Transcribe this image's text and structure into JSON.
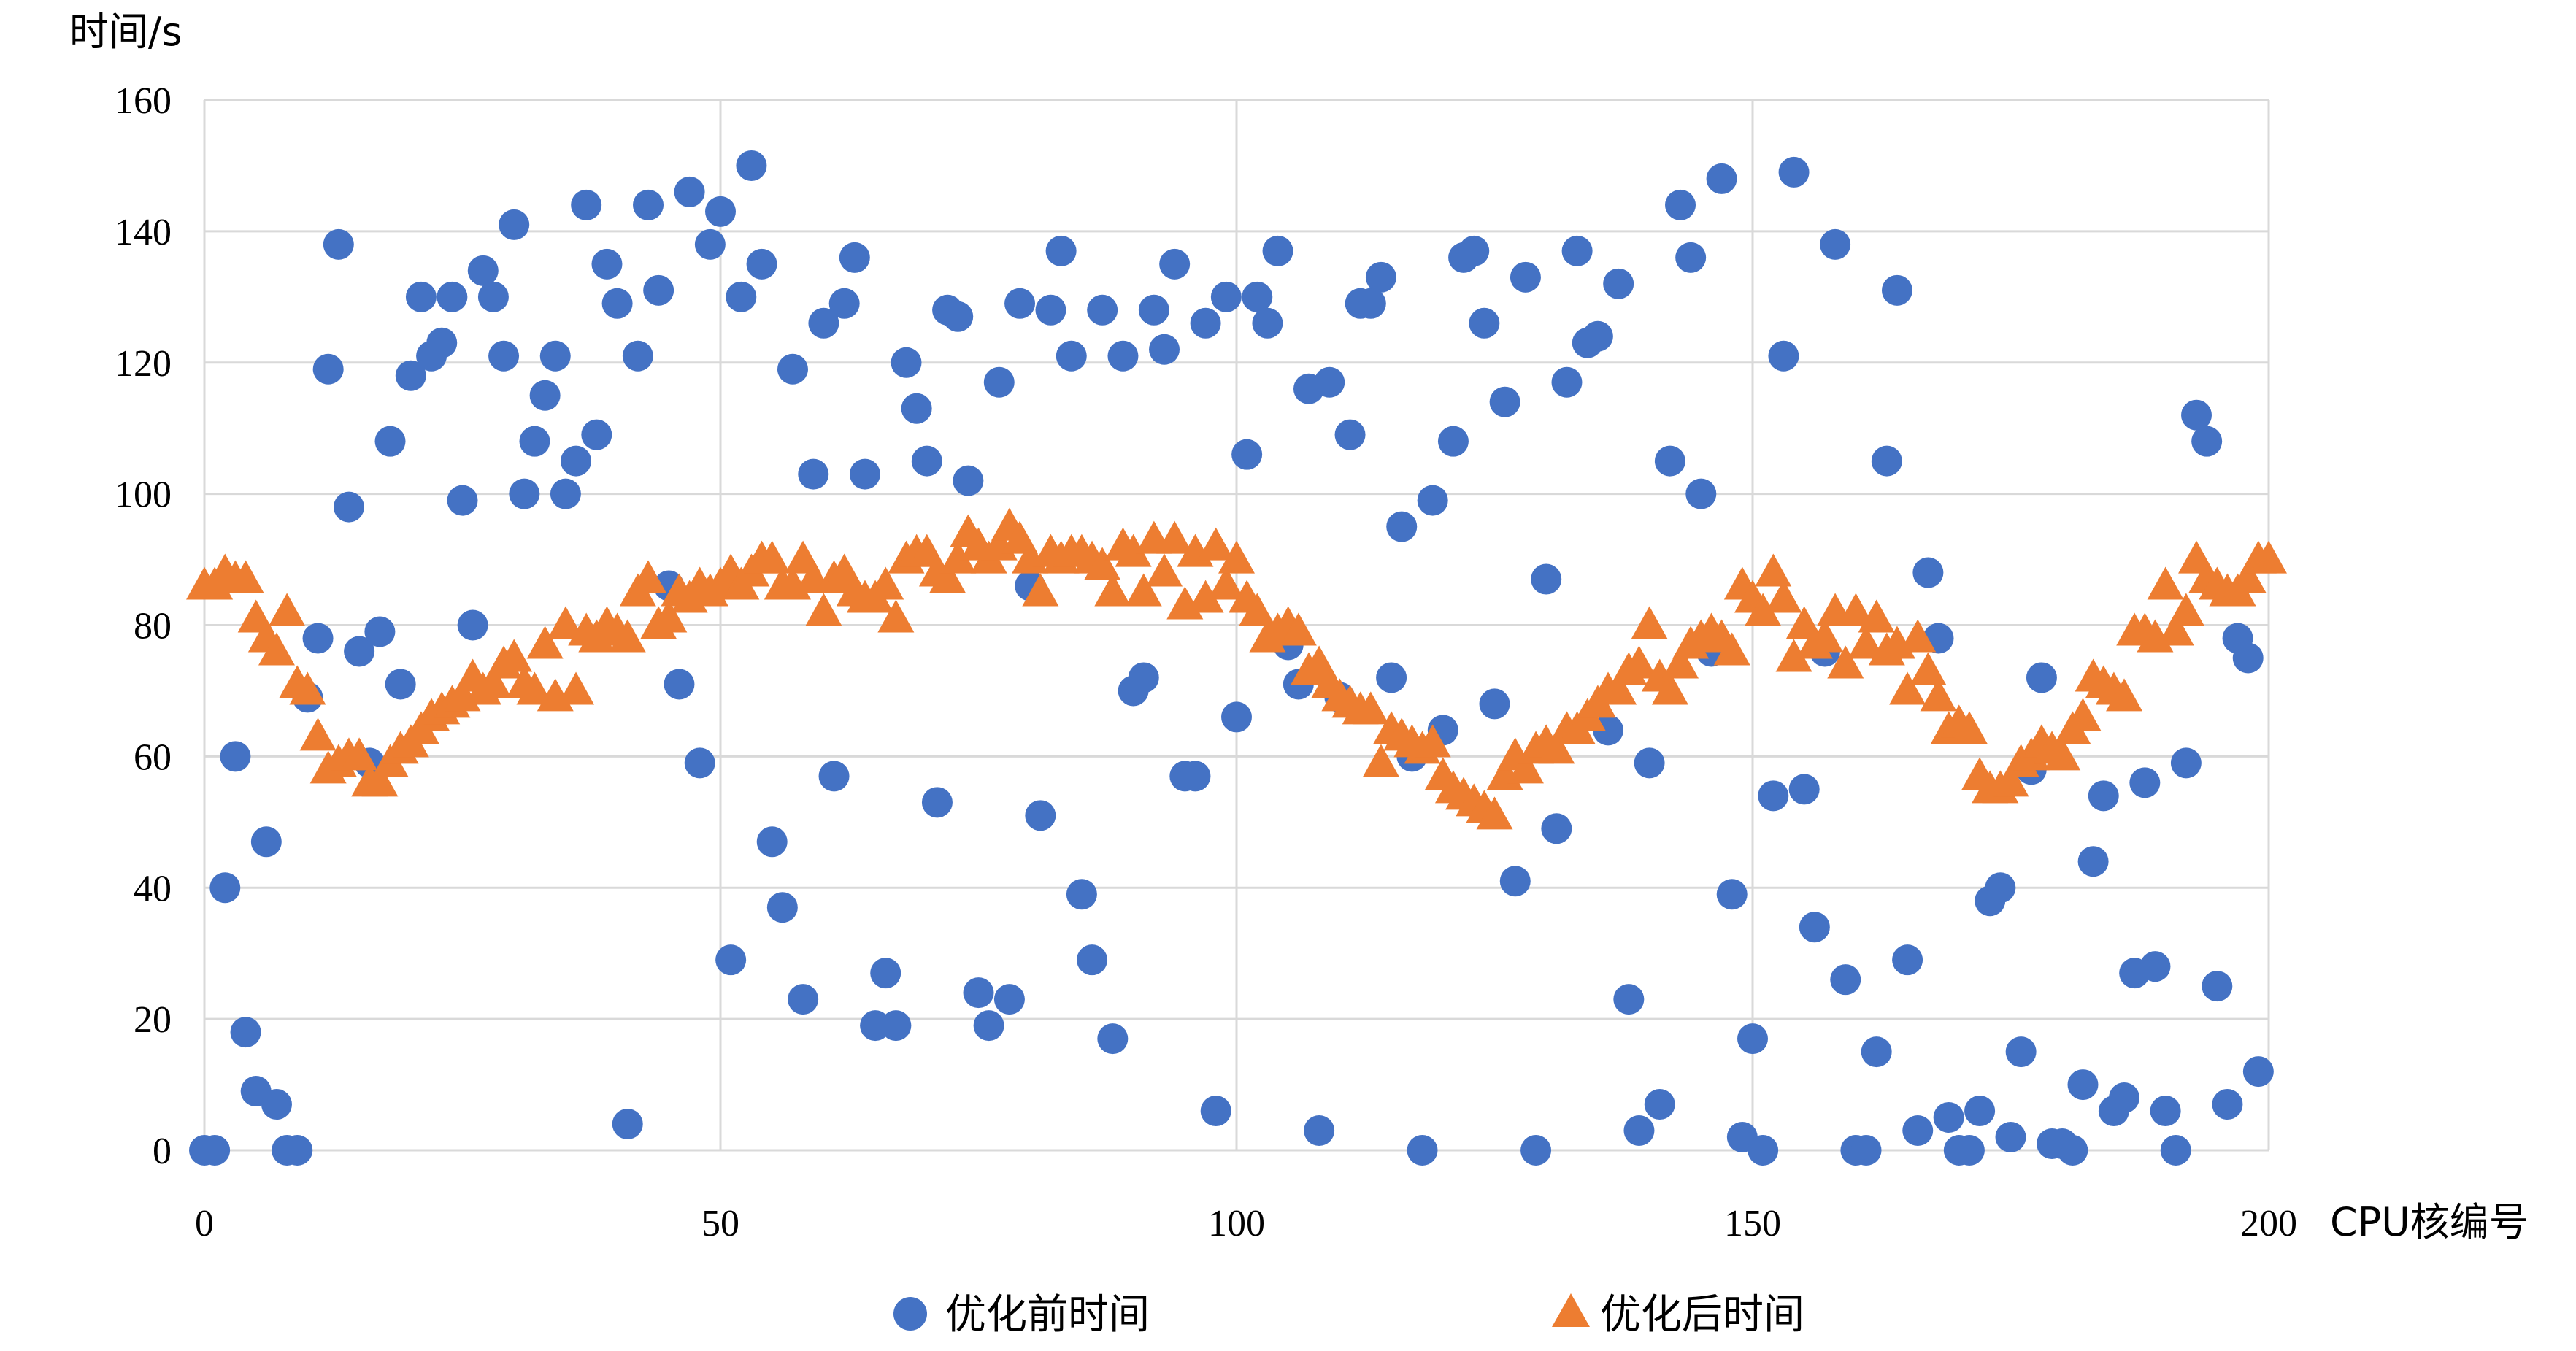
{
  "chart_data": {
    "type": "scatter",
    "title": "",
    "ylabel": "时间/s",
    "xlabel": "CPU核编号",
    "xlim": [
      0,
      200
    ],
    "ylim": [
      0,
      160
    ],
    "x_ticks": [
      0,
      50,
      100,
      150,
      200
    ],
    "y_ticks": [
      0,
      20,
      40,
      60,
      80,
      100,
      120,
      140,
      160
    ],
    "grid": true,
    "legend": "bottom",
    "series": [
      {
        "name": "优化前时间",
        "marker": "circle",
        "color": "#4472c4",
        "values": [
          0,
          0,
          40,
          60,
          18,
          9,
          47,
          7,
          0,
          0,
          69,
          78,
          119,
          138,
          98,
          76,
          59,
          79,
          108,
          71,
          118,
          130,
          121,
          123,
          130,
          99,
          80,
          134,
          130,
          121,
          141,
          100,
          108,
          115,
          121,
          100,
          105,
          144,
          109,
          135,
          129,
          4,
          121,
          144,
          131,
          86,
          71,
          146,
          59,
          138,
          143,
          29,
          130,
          150,
          135,
          47,
          37,
          119,
          23,
          103,
          126,
          57,
          129,
          136,
          103,
          19,
          27,
          19,
          120,
          113,
          105,
          53,
          128,
          127,
          102,
          24,
          19,
          117,
          23,
          129,
          86,
          51,
          128,
          137,
          121,
          39,
          29,
          128,
          17,
          121,
          70,
          72,
          128,
          122,
          135,
          57,
          57,
          126,
          6,
          130,
          66,
          106,
          130,
          126,
          137,
          77,
          71,
          116,
          3,
          117,
          69,
          109,
          129,
          129,
          133,
          72,
          95,
          60,
          0,
          99,
          64,
          108,
          136,
          137,
          126,
          68,
          114,
          41,
          133,
          0,
          87,
          49,
          117,
          137,
          123,
          124,
          64,
          132,
          23,
          3,
          59,
          7,
          105,
          144,
          136,
          100,
          76,
          148,
          39,
          2,
          17,
          0,
          54,
          121,
          149,
          55,
          34,
          76,
          138,
          26,
          0,
          0,
          15,
          105,
          131,
          29,
          3,
          88,
          78,
          5,
          0,
          0,
          6,
          38,
          40,
          2,
          15,
          58,
          72,
          1,
          1,
          0,
          10,
          44,
          54,
          6,
          8,
          27,
          56,
          28,
          6,
          0,
          59,
          112,
          108,
          25,
          7,
          78,
          75,
          12
        ]
      },
      {
        "name": "优化后时间",
        "marker": "triangle",
        "color": "#ed7d31",
        "values": [
          86,
          86,
          88,
          87,
          87,
          81,
          78,
          76,
          82,
          71,
          70,
          63,
          58,
          59,
          60,
          60,
          56,
          56,
          59,
          61,
          62,
          64,
          66,
          67,
          68,
          69,
          72,
          70,
          71,
          74,
          75,
          71,
          70,
          77,
          69,
          80,
          70,
          79,
          78,
          80,
          79,
          78,
          85,
          87,
          80,
          81,
          85,
          84,
          86,
          85,
          86,
          88,
          86,
          88,
          90,
          90,
          86,
          86,
          90,
          87,
          82,
          87,
          88,
          85,
          84,
          84,
          86,
          81,
          90,
          91,
          91,
          88,
          87,
          90,
          94,
          92,
          90,
          92,
          95,
          93,
          90,
          85,
          91,
          90,
          91,
          91,
          90,
          89,
          85,
          92,
          91,
          85,
          93,
          88,
          93,
          83,
          91,
          84,
          92,
          86,
          90,
          84,
          82,
          78,
          79,
          80,
          79,
          73,
          74,
          71,
          69,
          68,
          67,
          67,
          59,
          64,
          63,
          62,
          61,
          62,
          57,
          55,
          54,
          53,
          52,
          51,
          57,
          60,
          58,
          61,
          62,
          61,
          64,
          64,
          66,
          68,
          70,
          70,
          73,
          74,
          80,
          72,
          70,
          74,
          77,
          78,
          79,
          78,
          76,
          86,
          84,
          82,
          88,
          84,
          75,
          80,
          77,
          78,
          82,
          74,
          82,
          77,
          81,
          76,
          77,
          70,
          78,
          73,
          69,
          64,
          65,
          64,
          57,
          55,
          55,
          56,
          59,
          60,
          62,
          61,
          60,
          64,
          66,
          72,
          71,
          70,
          69,
          79,
          79,
          78,
          86,
          79,
          82,
          90,
          87,
          86,
          85,
          85,
          87,
          90,
          90
        ]
      }
    ]
  }
}
